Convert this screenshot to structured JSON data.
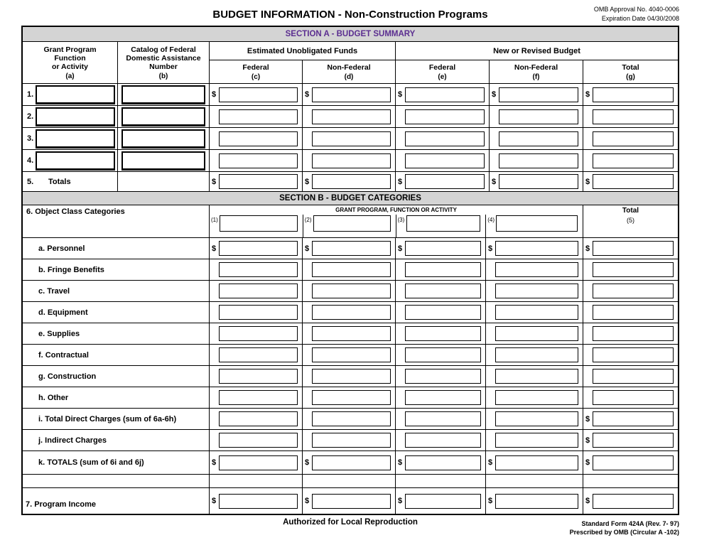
{
  "currency": "$",
  "header": {
    "title": "BUDGET INFORMATION - Non-Construction Programs",
    "omb_approval": "OMB Approval No. 4040-0006",
    "expiration": "Expiration Date 04/30/2008"
  },
  "section_a": {
    "title": "SECTION A - BUDGET SUMMARY",
    "headers": {
      "grant_line1": "Grant Program",
      "grant_line2": "Function",
      "grant_line3": "or Activity",
      "grant_sub": "(a)",
      "catalog_line1": "Catalog of Federal",
      "catalog_line2": "Domestic Assistance",
      "catalog_line3": "Number",
      "catalog_sub": "(b)",
      "estimated_unobligated": "Estimated Unobligated Funds",
      "new_or_revised": "New or Revised Budget",
      "federal": "Federal",
      "non_federal": "Non-Federal",
      "total": "Total",
      "sub_c": "(c)",
      "sub_d": "(d)",
      "sub_e": "(e)",
      "sub_f": "(f)",
      "sub_g": "(g)"
    },
    "rows": [
      {
        "num": "1."
      },
      {
        "num": "2."
      },
      {
        "num": "3."
      },
      {
        "num": "4."
      },
      {
        "num": "5.",
        "label": "Totals"
      }
    ]
  },
  "section_b": {
    "title": "SECTION B - BUDGET CATEGORIES",
    "object_class_label": "6. Object Class Categories",
    "grant_program_header": "GRANT PROGRAM, FUNCTION OR ACTIVITY",
    "total_label": "Total",
    "col_nums": [
      "(1)",
      "(2)",
      "(3)",
      "(4)"
    ],
    "total_num": "(5)",
    "rows": [
      {
        "label": "a. Personnel"
      },
      {
        "label": "b. Fringe Benefits"
      },
      {
        "label": "c. Travel"
      },
      {
        "label": "d. Equipment"
      },
      {
        "label": "e. Supplies"
      },
      {
        "label": "f. Contractual"
      },
      {
        "label": "g. Construction"
      },
      {
        "label": "h. Other"
      },
      {
        "label": "i. Total Direct Charges (sum of 6a-6h)"
      },
      {
        "label": "j. Indirect Charges"
      },
      {
        "label": "k. TOTALS (sum of 6i and 6j)"
      }
    ],
    "program_income_label": "7. Program Income"
  },
  "footer": {
    "center": "Authorized for Local Reproduction",
    "form_number": "Standard Form 424A (Rev. 7- 97)",
    "prescribed": "Prescribed by OMB (Circular A -102)"
  }
}
